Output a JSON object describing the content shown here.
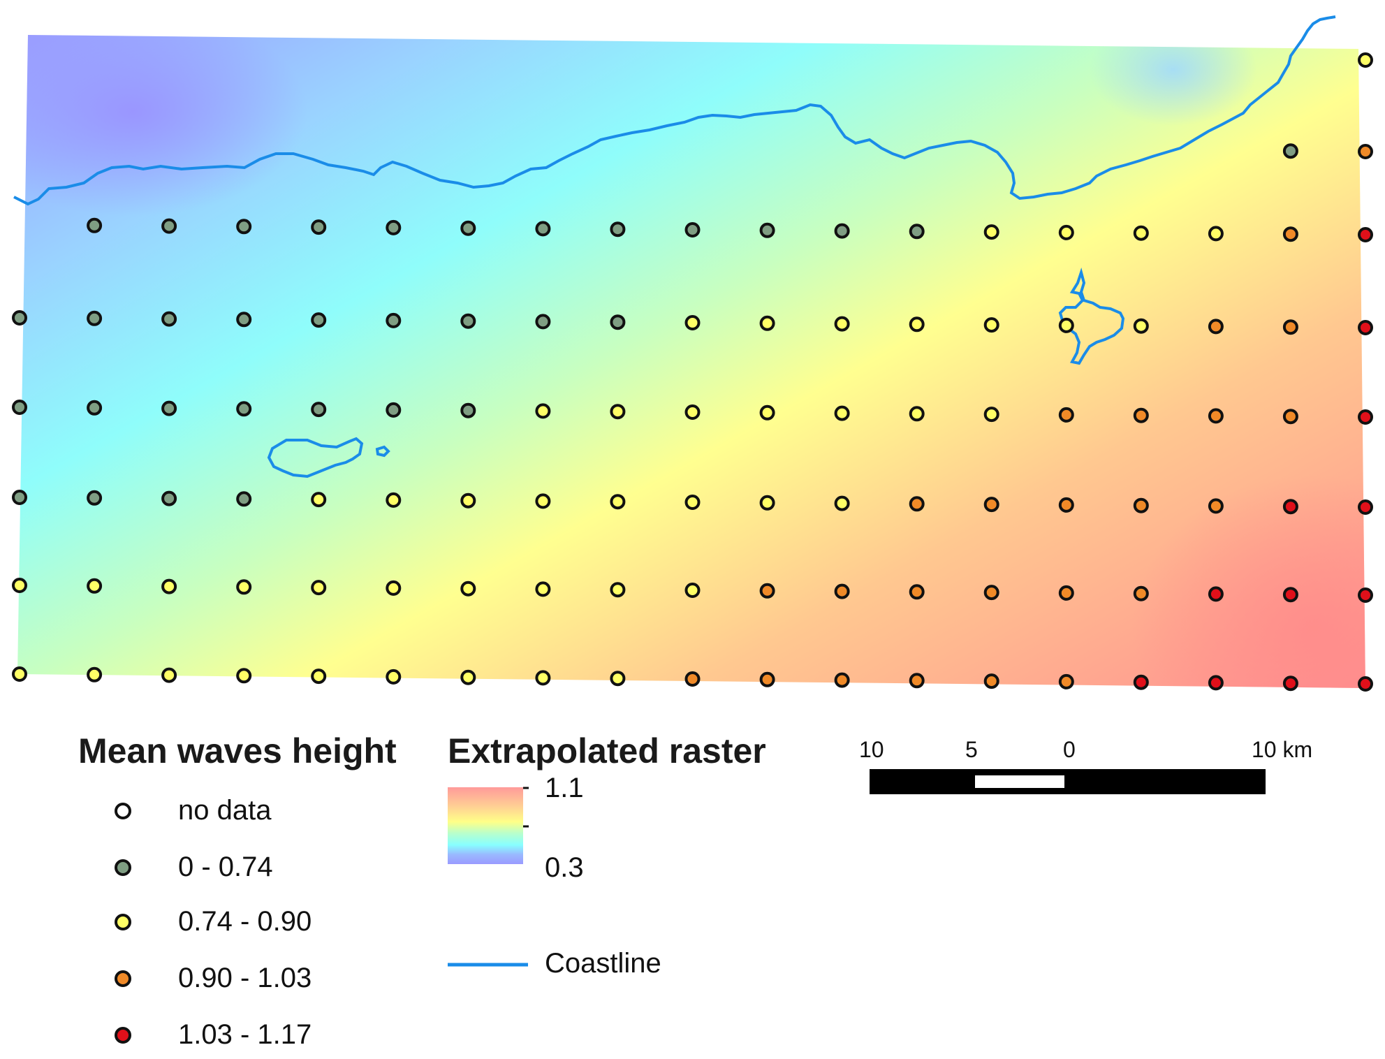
{
  "map": {
    "raster_range": [
      0.3,
      1.1
    ],
    "points": {
      "rows": [
        {
          "y_idx": 0,
          "classes": [
            "",
            "",
            "",
            "",
            "",
            "",
            "",
            "",
            "",
            "",
            "",
            "",
            "",
            "",
            "",
            "",
            "",
            "",
            "yellow"
          ]
        },
        {
          "y_idx": 1,
          "classes": [
            "",
            "",
            "",
            "",
            "",
            "",
            "",
            "",
            "",
            "",
            "",
            "",
            "",
            "",
            "",
            "",
            "",
            "gray",
            "orange"
          ]
        },
        {
          "y_idx": 2,
          "classes": [
            "",
            "gray",
            "gray",
            "gray",
            "gray",
            "gray",
            "gray",
            "gray",
            "gray",
            "gray",
            "gray",
            "gray",
            "gray",
            "yellow",
            "yellow",
            "yellow",
            "yellow",
            "orange",
            "red"
          ]
        },
        {
          "y_idx": 3,
          "classes": [
            "gray",
            "gray",
            "gray",
            "gray",
            "gray",
            "gray",
            "gray",
            "gray",
            "gray",
            "yellow",
            "yellow",
            "yellow",
            "yellow",
            "yellow",
            "yellow",
            "yellow",
            "orange",
            "orange",
            "red"
          ]
        },
        {
          "y_idx": 4,
          "classes": [
            "gray",
            "gray",
            "gray",
            "gray",
            "gray",
            "gray",
            "gray",
            "yellow",
            "yellow",
            "yellow",
            "yellow",
            "yellow",
            "yellow",
            "yellow",
            "orange",
            "orange",
            "orange",
            "orange",
            "red"
          ]
        },
        {
          "y_idx": 5,
          "classes": [
            "gray",
            "gray",
            "gray",
            "gray",
            "yellow",
            "yellow",
            "yellow",
            "yellow",
            "yellow",
            "yellow",
            "yellow",
            "yellow",
            "orange",
            "orange",
            "orange",
            "orange",
            "orange",
            "red",
            "red"
          ]
        },
        {
          "y_idx": 6,
          "classes": [
            "yellow",
            "yellow",
            "yellow",
            "yellow",
            "yellow",
            "yellow",
            "yellow",
            "yellow",
            "yellow",
            "yellow",
            "orange",
            "orange",
            "orange",
            "orange",
            "orange",
            "orange",
            "red",
            "red",
            "red"
          ]
        },
        {
          "y_idx": 7,
          "classes": [
            "yellow",
            "yellow",
            "yellow",
            "yellow",
            "yellow",
            "yellow",
            "yellow",
            "yellow",
            "yellow",
            "orange",
            "orange",
            "orange",
            "orange",
            "orange",
            "orange",
            "red",
            "red",
            "red",
            "red"
          ]
        }
      ]
    }
  },
  "legend_waves": {
    "title": "Mean waves height",
    "items": [
      {
        "label": "no data",
        "color": "#ffffff"
      },
      {
        "label": "0 - 0.74",
        "color": "#7f9e83"
      },
      {
        "label": "0.74 - 0.90",
        "color": "#ffff66"
      },
      {
        "label": "0.90 - 1.03",
        "color": "#f08a28"
      },
      {
        "label": "1.03 - 1.17",
        "color": "#e0101a"
      }
    ]
  },
  "legend_raster": {
    "title": "Extrapolated raster",
    "max_label": "1.1",
    "min_label": "0.3",
    "colors": [
      "#ff9a9a",
      "#ffd090",
      "#ffff88",
      "#b8ffcc",
      "#88ffff",
      "#9ab8ff",
      "#9a9aff"
    ]
  },
  "legend_line": {
    "label": "Coastline",
    "color": "#1a8ce8"
  },
  "scale_bar": {
    "labels": [
      "10",
      "5",
      "0",
      "10 km"
    ]
  },
  "colors": {
    "gray": "#7f9e83",
    "yellow": "#ffff66",
    "orange": "#f08a28",
    "red": "#e0101a",
    "coastline": "#1a8ce8"
  }
}
